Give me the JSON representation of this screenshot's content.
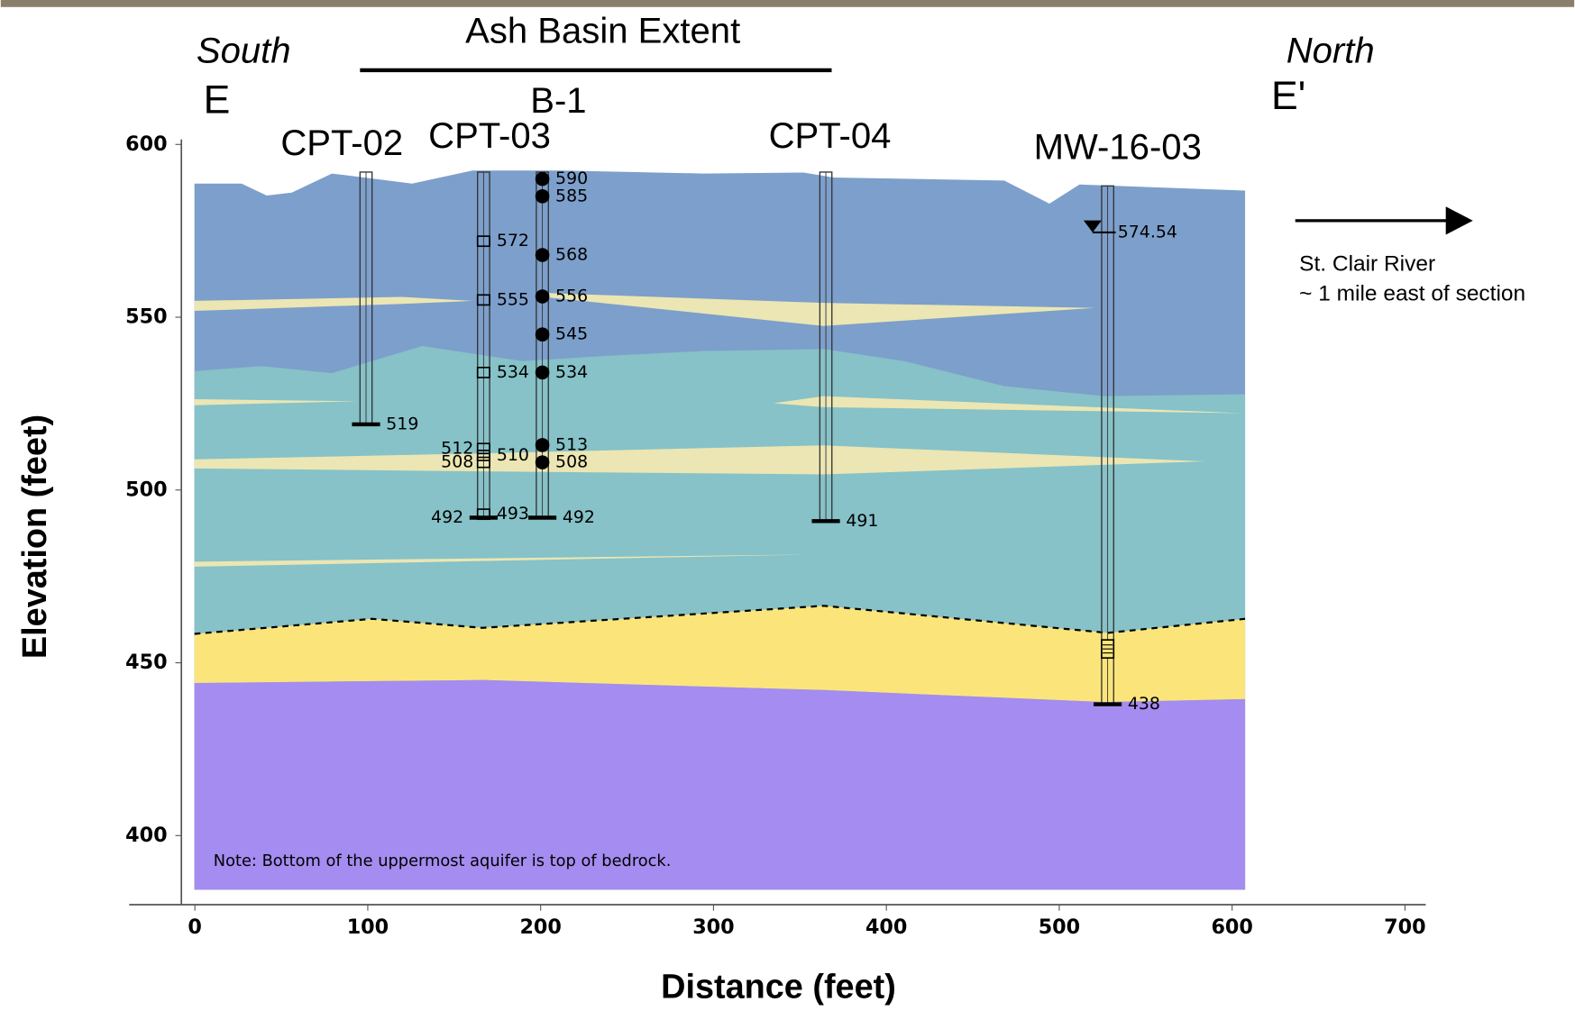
{
  "chart_data": {
    "type": "cross-section",
    "title": "Ash Basin Extent",
    "xlabel": "Distance (feet)",
    "ylabel": "Elevation (feet)",
    "left_direction": "South",
    "right_direction": "North",
    "left_section_label": "E",
    "right_section_label": "E'",
    "xlim": [
      -38,
      712
    ],
    "ylim": [
      380,
      600
    ],
    "xticks": [
      0,
      100,
      200,
      300,
      400,
      500,
      600,
      700
    ],
    "yticks": [
      400,
      450,
      500,
      550,
      600
    ],
    "borings": [
      {
        "name": "CPT-02",
        "x": 99,
        "top": 592,
        "bottom": 519
      },
      {
        "name": "CPT-03",
        "x": 167,
        "top": 592,
        "bottom": 492,
        "marker": "square",
        "samples": [
          572,
          555,
          534,
          512,
          510,
          508,
          493
        ]
      },
      {
        "name": "B-1",
        "x": 201,
        "top": 592,
        "bottom": 492,
        "marker": "circle",
        "samples": [
          590,
          585,
          568,
          556,
          545,
          534,
          513,
          508
        ]
      },
      {
        "name": "CPT-04",
        "x": 365,
        "top": 592,
        "bottom": 491
      },
      {
        "name": "MW-16-03",
        "x": 528,
        "top": 588,
        "bottom": 438,
        "water_level": 574.54
      }
    ],
    "annotations": [
      "St. Clair River",
      "~ 1 mile east of section",
      "Note: Bottom of the uppermost aquifer is top of bedrock."
    ]
  }
}
